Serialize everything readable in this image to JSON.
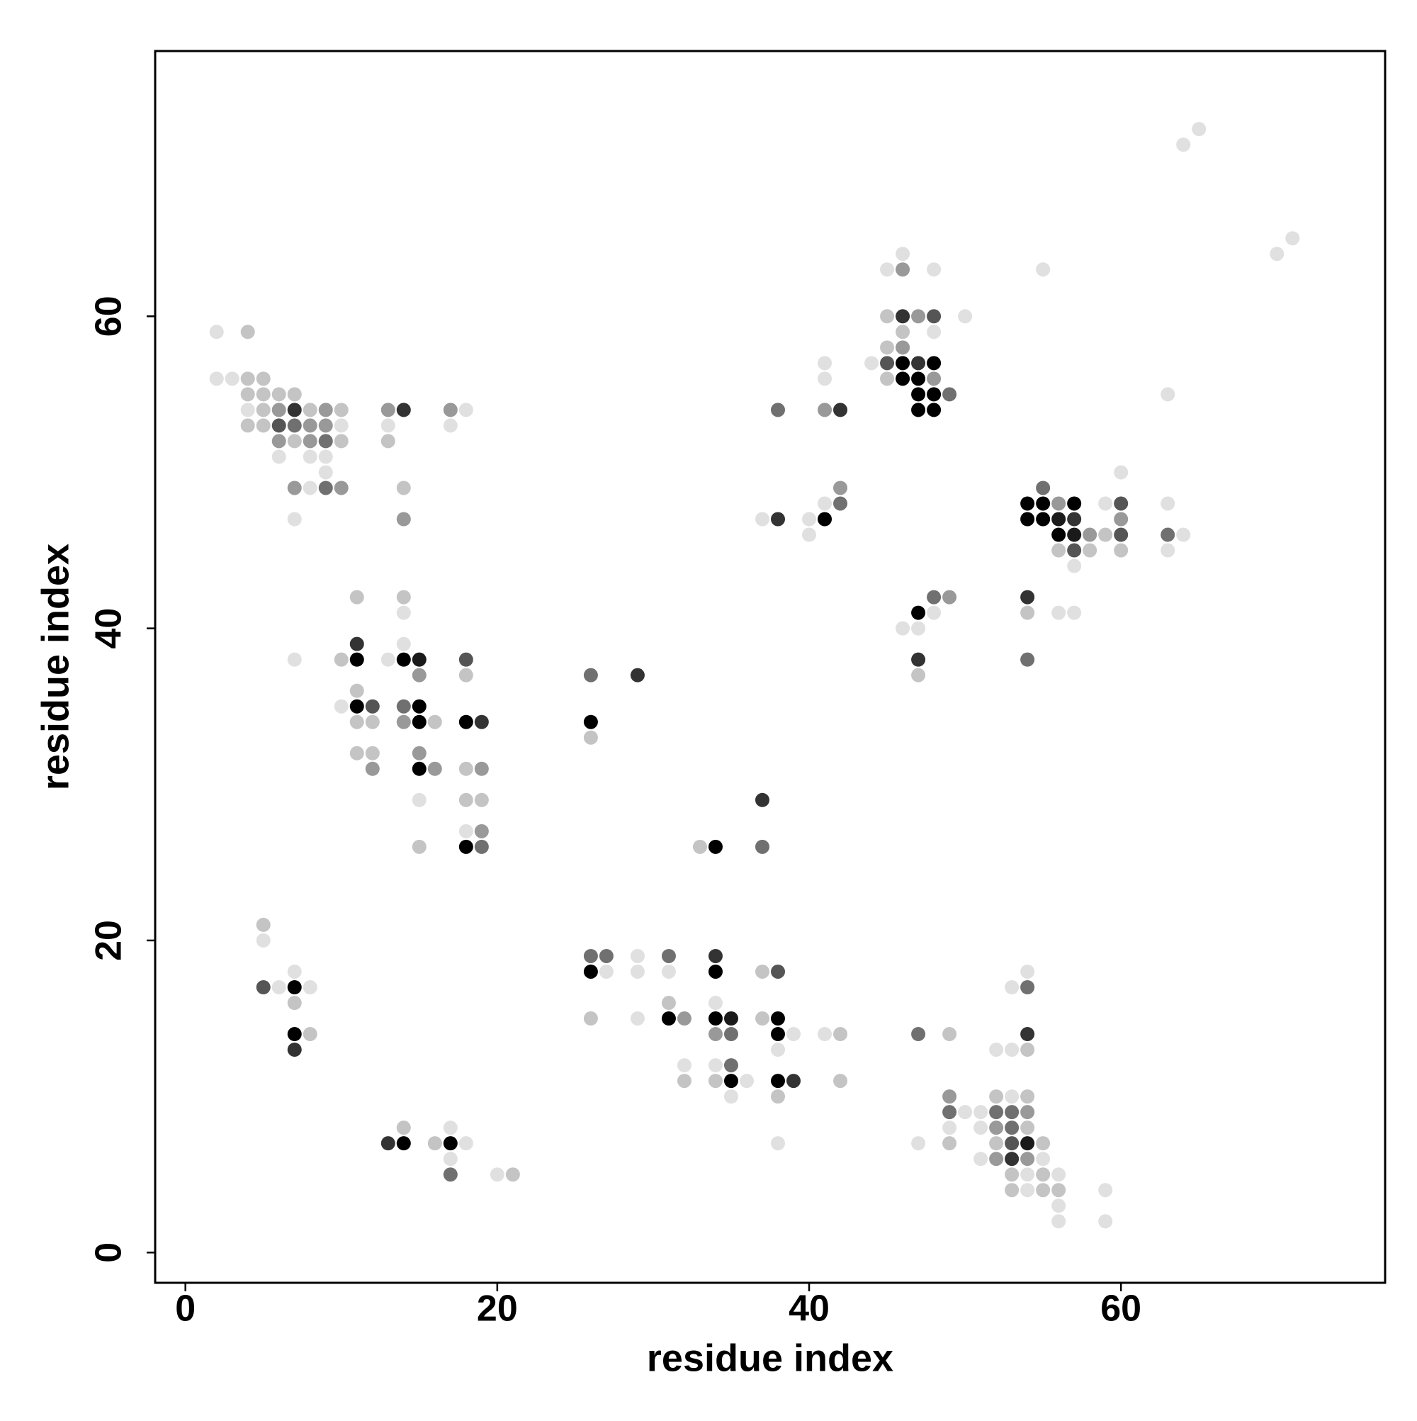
{
  "chart_data": {
    "type": "scatter",
    "xlabel": "residue index",
    "ylabel": "residue index",
    "xlim": [
      -1.94,
      76.94
    ],
    "ylim": [
      -1.94,
      77.0
    ],
    "xticks": [
      0,
      20,
      40,
      60
    ],
    "yticks": [
      0,
      20,
      40,
      60
    ],
    "series": [
      {
        "color": "#e0e0e0",
        "x": [
          2,
          2,
          3,
          4,
          10,
          6,
          8,
          9,
          9,
          8,
          7,
          13,
          18,
          17,
          7,
          14,
          14,
          13,
          10,
          15,
          18,
          5,
          7,
          6,
          8,
          18,
          17,
          17,
          20,
          27,
          29,
          29,
          31,
          34,
          29,
          39,
          41,
          38,
          52,
          53,
          32,
          34,
          36,
          35,
          38,
          53,
          54,
          53,
          50,
          51,
          49,
          51,
          47,
          51,
          55,
          54,
          56,
          54,
          59,
          56,
          56,
          59,
          64,
          65,
          70,
          71,
          46,
          45,
          48,
          55,
          50,
          48,
          41,
          44,
          41,
          63,
          41,
          37,
          40,
          40,
          60,
          59,
          63,
          64,
          63,
          57,
          48,
          56,
          57,
          46,
          47
        ],
        "y": [
          59,
          56,
          56,
          54,
          53,
          51,
          51,
          51,
          50,
          49,
          47,
          53,
          54,
          53,
          38,
          41,
          39,
          38,
          35,
          29,
          27,
          20,
          18,
          17,
          17,
          7,
          8,
          6,
          5,
          18,
          19,
          18,
          18,
          16,
          15,
          14,
          14,
          13,
          13,
          13,
          12,
          12,
          11,
          10,
          7,
          17,
          18,
          10,
          9,
          9,
          8,
          8,
          7,
          6,
          6,
          5,
          5,
          4,
          4,
          3,
          2,
          2,
          71,
          72,
          64,
          65,
          64,
          63,
          63,
          63,
          60,
          59,
          57,
          57,
          56,
          55,
          48,
          47,
          47,
          46,
          50,
          48,
          48,
          46,
          45,
          44,
          41,
          41,
          41,
          40,
          40
        ]
      },
      {
        "color": "#c4c4c4",
        "x": [
          4,
          4,
          5,
          4,
          5,
          6,
          7,
          5,
          8,
          10,
          4,
          5,
          7,
          10,
          13,
          14,
          11,
          14,
          10,
          18,
          11,
          11,
          12,
          16,
          11,
          12,
          18,
          18,
          19,
          15,
          26,
          33,
          5,
          7,
          8,
          14,
          16,
          21,
          31,
          26,
          37,
          37,
          42,
          49,
          54,
          32,
          34,
          42,
          38,
          52,
          54,
          54,
          49,
          52,
          55,
          53,
          55,
          53,
          55,
          56,
          45,
          46,
          45,
          45,
          59,
          56,
          58,
          60,
          54,
          47
        ],
        "y": [
          59,
          56,
          56,
          55,
          55,
          55,
          55,
          54,
          54,
          54,
          53,
          53,
          52,
          52,
          52,
          49,
          42,
          42,
          38,
          37,
          36,
          34,
          34,
          34,
          32,
          32,
          31,
          29,
          29,
          26,
          33,
          26,
          21,
          16,
          14,
          8,
          7,
          5,
          16,
          15,
          15,
          18,
          14,
          14,
          13,
          11,
          11,
          11,
          10,
          10,
          10,
          8,
          7,
          7,
          7,
          5,
          5,
          4,
          4,
          4,
          60,
          59,
          58,
          56,
          46,
          45,
          45,
          45,
          41,
          37
        ]
      },
      {
        "color": "#999999",
        "x": [
          6,
          9,
          8,
          9,
          6,
          8,
          7,
          10,
          13,
          17,
          14,
          15,
          14,
          15,
          12,
          16,
          19,
          19,
          34,
          32,
          54,
          52,
          52,
          54,
          49,
          46,
          47,
          46,
          48,
          41,
          42,
          56,
          60,
          58,
          49
        ],
        "y": [
          54,
          54,
          53,
          53,
          52,
          52,
          49,
          49,
          54,
          54,
          47,
          37,
          34,
          32,
          31,
          31,
          31,
          27,
          14,
          15,
          9,
          8,
          6,
          6,
          10,
          63,
          60,
          58,
          56,
          54,
          49,
          48,
          47,
          46,
          42
        ]
      },
      {
        "color": "#707070",
        "x": [
          7,
          9,
          9,
          35,
          35,
          26,
          19,
          37,
          14,
          27,
          26,
          31,
          17,
          47,
          54,
          49,
          52,
          53,
          53,
          49,
          38,
          42,
          55,
          63,
          48,
          54
        ],
        "y": [
          53,
          52,
          49,
          14,
          12,
          37,
          26,
          26,
          35,
          19,
          19,
          19,
          5,
          14,
          17,
          9,
          9,
          9,
          8,
          55,
          54,
          48,
          49,
          46,
          42,
          38
        ]
      },
      {
        "color": "#555555",
        "x": [
          6,
          12,
          18,
          5,
          38,
          53,
          45,
          48,
          60,
          57,
          60
        ],
        "y": [
          53,
          35,
          38,
          17,
          18,
          7,
          57,
          60,
          48,
          45,
          46
        ]
      },
      {
        "color": "#333333",
        "x": [
          7,
          14,
          11,
          19,
          29,
          37,
          13,
          7,
          34,
          39,
          54,
          53,
          46,
          47,
          42,
          38,
          57,
          54,
          47
        ],
        "y": [
          54,
          54,
          39,
          34,
          37,
          29,
          7,
          13,
          19,
          11,
          14,
          6,
          60,
          57,
          54,
          47,
          47,
          42,
          38
        ]
      },
      {
        "color": "#1a1a1a",
        "x": [
          15,
          35,
          56,
          57,
          54
        ],
        "y": [
          38,
          15,
          47,
          46,
          7
        ]
      },
      {
        "color": "#000000",
        "x": [
          11,
          14,
          11,
          15,
          15,
          18,
          15,
          18,
          26,
          34,
          7,
          7,
          14,
          17,
          26,
          34,
          31,
          34,
          38,
          38,
          35,
          38,
          46,
          48,
          46,
          47,
          47,
          48,
          47,
          48,
          41,
          54,
          55,
          57,
          54,
          55,
          56,
          47
        ],
        "y": [
          38,
          38,
          35,
          35,
          34,
          34,
          31,
          26,
          34,
          26,
          17,
          14,
          7,
          7,
          18,
          18,
          15,
          15,
          15,
          14,
          11,
          11,
          57,
          57,
          56,
          56,
          55,
          55,
          54,
          54,
          47,
          48,
          48,
          48,
          47,
          47,
          46,
          41
        ]
      }
    ]
  }
}
